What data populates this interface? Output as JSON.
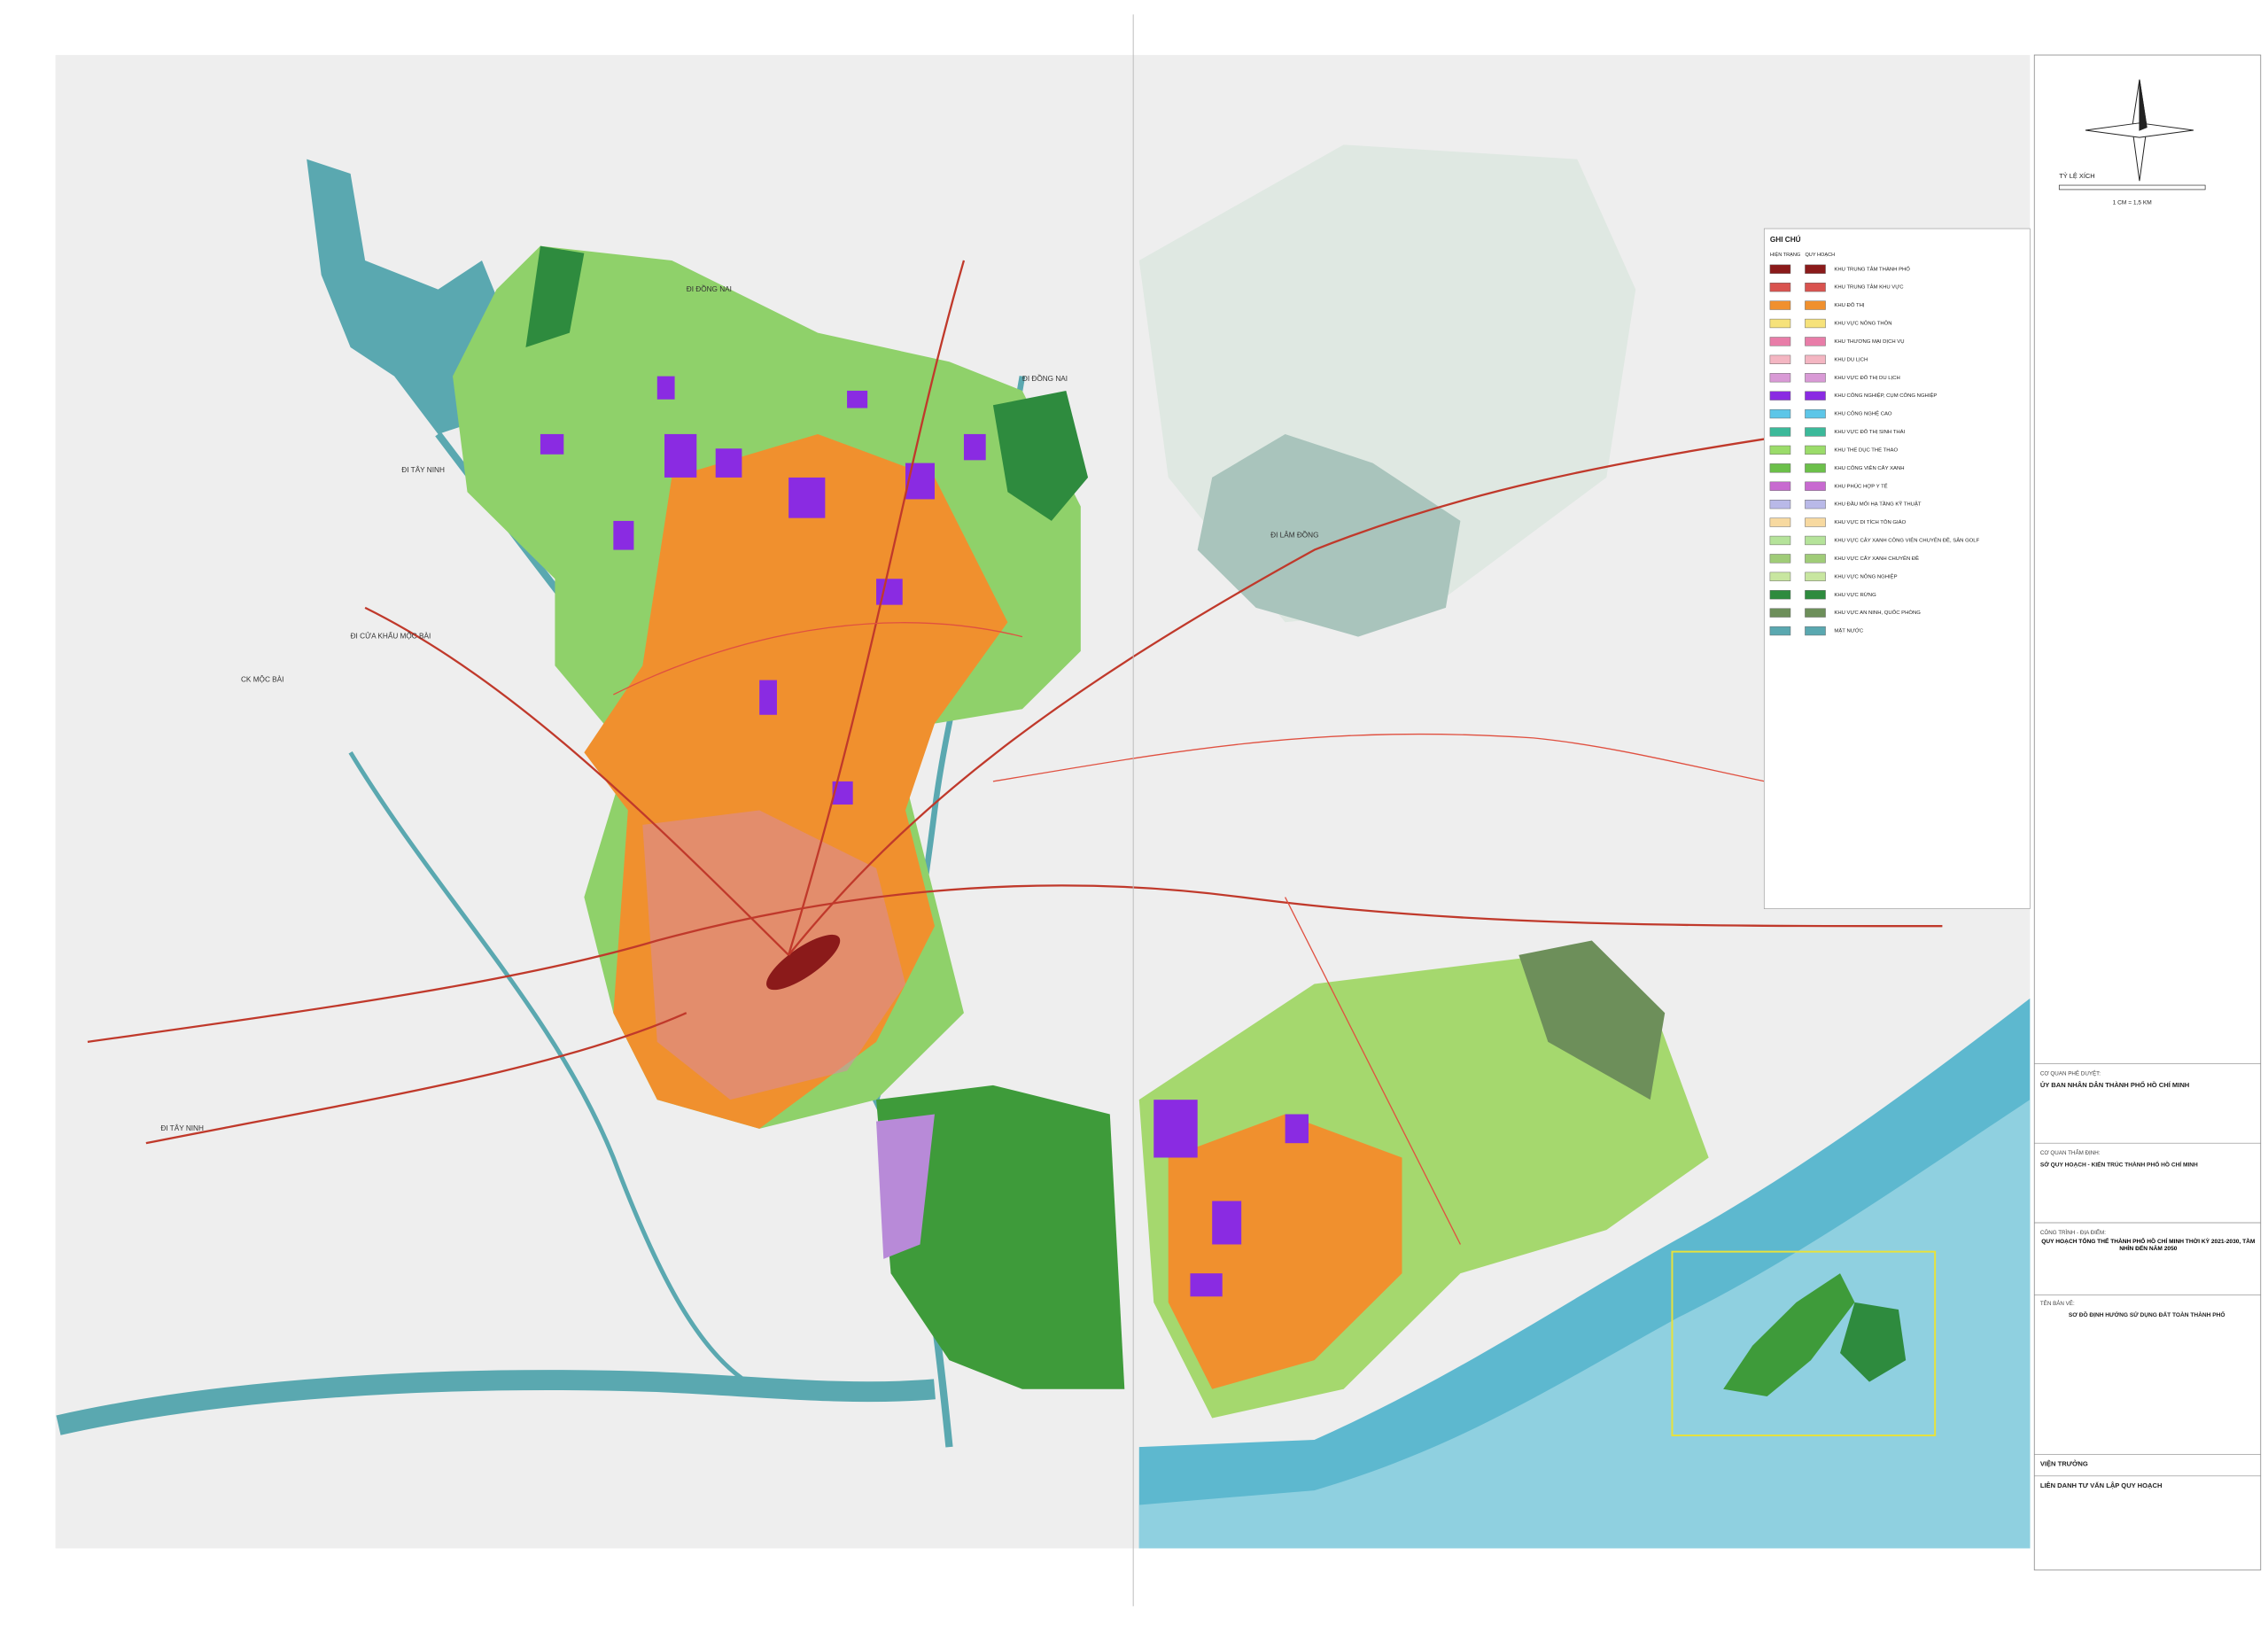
{
  "header": {
    "scale_label": "TỶ LỆ XÍCH",
    "scale_text": "1 CM = 1,5 KM"
  },
  "legend": {
    "title": "GHI CHÚ",
    "columns": [
      "HIỆN TRẠNG",
      "QUY HOẠCH"
    ],
    "items": [
      {
        "label": "KHU TRUNG TÂM THÀNH PHỐ",
        "color": "#8b1a1a"
      },
      {
        "label": "KHU TRUNG TÂM KHU VỰC",
        "color": "#d9534f"
      },
      {
        "label": "KHU ĐÔ THỊ",
        "color": "#f0902e"
      },
      {
        "label": "KHU VỰC NÔNG THÔN",
        "color": "#f6e27a"
      },
      {
        "label": "KHU THƯƠNG MẠI DỊCH VỤ",
        "color": "#e87da8"
      },
      {
        "label": "KHU DU LỊCH",
        "color": "#f4b6c2"
      },
      {
        "label": "KHU VỰC ĐÔ THỊ DU LỊCH",
        "color": "#d99ad6"
      },
      {
        "label": "KHU CÔNG NGHIỆP, CỤM CÔNG NGHIỆP",
        "color": "#8a2be2"
      },
      {
        "label": "KHU CÔNG NGHỆ CAO",
        "color": "#5dc6e8"
      },
      {
        "label": "KHU VỰC ĐÔ THỊ SINH THÁI",
        "color": "#3cb99a"
      },
      {
        "label": "KHU THỂ DỤC THỂ THAO",
        "color": "#9bdc6a"
      },
      {
        "label": "KHU CÔNG VIÊN CÂY XANH",
        "color": "#6cc04a"
      },
      {
        "label": "KHU PHÚC HỢP Y TẾ",
        "color": "#c86ad0"
      },
      {
        "label": "KHU ĐẦU MỐI HẠ TẦNG KỸ THUẬT",
        "color": "#b9b9e8"
      },
      {
        "label": "KHU VỰC DI TÍCH TÔN GIÁO",
        "color": "#f7d9a0"
      },
      {
        "label": "KHU VỰC CÂY XANH CÔNG VIÊN CHUYÊN ĐỀ, SÂN GOLF",
        "color": "#b5e39a"
      },
      {
        "label": "KHU VỰC CÂY XANH CHUYÊN ĐỀ",
        "color": "#a0cc78"
      },
      {
        "label": "KHU VỰC NÔNG NGHIỆP",
        "color": "#c8e6a0"
      },
      {
        "label": "KHU VỰC RỪNG",
        "color": "#2e8b3e"
      },
      {
        "label": "KHU VỰC AN NINH, QUỐC PHÒNG",
        "color": "#6d8f5a"
      },
      {
        "label": "MẶT NƯỚC",
        "color": "#5aa8b0"
      }
    ]
  },
  "map_labels": [
    "ĐI ĐỒNG NAI",
    "ĐI TÂY NINH",
    "ĐI LÂM ĐỒNG",
    "ĐI CỬA KHẨU MỘC BÀI",
    "CK MỘC BÀI"
  ],
  "title_block": {
    "approval_label": "CƠ QUAN PHÊ DUYỆT:",
    "approval": "ỦY BAN NHÂN DÂN THÀNH PHỐ HỒ CHÍ MINH",
    "appraisal_label": "CƠ QUAN THẨM ĐỊNH:",
    "appraisal": "SỞ QUY HOẠCH - KIẾN TRÚC THÀNH PHỐ HỒ CHÍ MINH",
    "project_label": "CÔNG TRÌNH - ĐỊA ĐIỂM:",
    "project": "QUY HOẠCH TỔNG THỂ THÀNH PHỐ HỒ CHÍ MINH THỜI KỲ 2021-2030, TẦM NHÌN ĐẾN NĂM 2050",
    "drawing_label": "TÊN BẢN VẼ:",
    "drawing": "SƠ ĐỒ ĐỊNH HƯỚNG SỬ DỤNG ĐẤT TOÀN THÀNH PHỐ",
    "director": "VIỆN TRƯỞNG",
    "consultant": "LIÊN DANH TƯ VẤN LẬP QUY HOẠCH"
  }
}
